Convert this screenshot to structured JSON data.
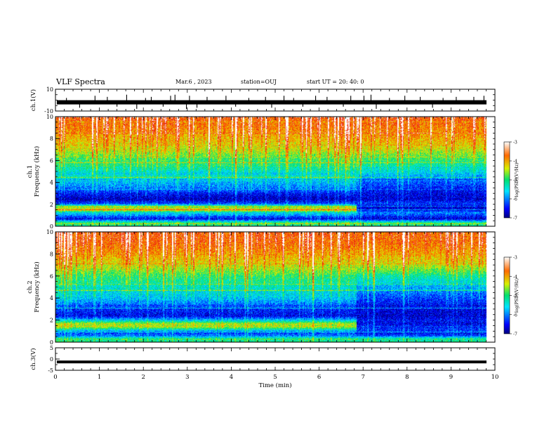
{
  "header": {
    "title": "VLF Spectra",
    "date": "Mar.6  , 2023",
    "station": "station=OUJ",
    "start": "start  UT  =   20: 40: 0"
  },
  "colors": {
    "panel_bg": "#0a1f9a",
    "waveform": "#000000",
    "accent_green": "#9be04a"
  },
  "chart_data": [
    {
      "type": "line",
      "name": "ch.1 waveform",
      "ylabel": "ch.1(V)",
      "yticks": [
        "10",
        "-10"
      ],
      "ylim": [
        -10,
        10
      ],
      "xlim": [
        0,
        10
      ],
      "baseline": -2,
      "spikes": [
        [
          0.25,
          4
        ],
        [
          0.55,
          -5
        ],
        [
          0.9,
          6
        ],
        [
          1.18,
          5
        ],
        [
          1.4,
          -4
        ],
        [
          1.62,
          7
        ],
        [
          1.85,
          -6
        ],
        [
          2.05,
          4
        ],
        [
          2.18,
          5
        ],
        [
          2.45,
          -4
        ],
        [
          2.62,
          6
        ],
        [
          2.72,
          7
        ],
        [
          2.98,
          -6
        ],
        [
          3.05,
          6
        ],
        [
          3.22,
          -5
        ],
        [
          3.45,
          5
        ],
        [
          3.88,
          6
        ],
        [
          4.1,
          -4
        ],
        [
          4.4,
          4
        ],
        [
          4.78,
          5
        ],
        [
          4.92,
          -5
        ],
        [
          5.2,
          6
        ],
        [
          5.42,
          4
        ],
        [
          5.63,
          -4
        ],
        [
          5.92,
          6
        ],
        [
          6.18,
          5
        ],
        [
          6.55,
          -4
        ],
        [
          6.72,
          6
        ],
        [
          7.02,
          6
        ],
        [
          7.18,
          7
        ],
        [
          7.3,
          -6
        ],
        [
          7.6,
          4
        ],
        [
          7.95,
          6
        ],
        [
          8.3,
          5
        ],
        [
          8.58,
          -5
        ],
        [
          8.82,
          4
        ],
        [
          9.12,
          5
        ],
        [
          9.52,
          5
        ],
        [
          9.75,
          6
        ]
      ]
    },
    {
      "type": "heatmap",
      "name": "ch.1 spectrogram",
      "ylabel": "ch.1\nFrequency  (kHz)",
      "yticks": [
        "0",
        "2",
        "4",
        "6",
        "8",
        "10"
      ],
      "ylim": [
        0,
        10
      ],
      "xlim": [
        0,
        10
      ],
      "colorbar": {
        "label": "log(PSD)(V²/Hz)",
        "ticks": [
          "-3",
          "-4",
          "-5",
          "-6",
          "-7"
        ],
        "range": [
          -7,
          -3
        ]
      },
      "regime_change_min": 6.85,
      "profile_before": [
        [
          0.0,
          -5.3
        ],
        [
          0.3,
          -4.8
        ],
        [
          0.7,
          -6.6
        ],
        [
          1.0,
          -6.0
        ],
        [
          1.3,
          -5.5
        ],
        [
          1.5,
          -4.2
        ],
        [
          1.8,
          -4.7
        ],
        [
          2.1,
          -6.3
        ],
        [
          2.5,
          -6.8
        ],
        [
          3.0,
          -6.5
        ],
        [
          3.4,
          -6.1
        ],
        [
          4.0,
          -5.8
        ],
        [
          4.6,
          -5.3
        ],
        [
          4.8,
          -5.6
        ],
        [
          5.4,
          -5.1
        ],
        [
          6.2,
          -4.9
        ],
        [
          7.0,
          -4.4
        ],
        [
          8.0,
          -4.1
        ],
        [
          9.0,
          -3.8
        ],
        [
          10.0,
          -3.6
        ]
      ],
      "profile_after": [
        [
          0.0,
          -5.3
        ],
        [
          0.3,
          -4.9
        ],
        [
          0.7,
          -6.7
        ],
        [
          1.0,
          -6.3
        ],
        [
          1.3,
          -6.0
        ],
        [
          1.5,
          -6.6
        ],
        [
          1.8,
          -6.7
        ],
        [
          2.1,
          -6.3
        ],
        [
          2.5,
          -6.7
        ],
        [
          3.0,
          -6.6
        ],
        [
          3.5,
          -6.4
        ],
        [
          4.0,
          -6.2
        ],
        [
          4.6,
          -5.8
        ],
        [
          5.4,
          -5.3
        ],
        [
          6.2,
          -4.9
        ],
        [
          7.0,
          -4.4
        ],
        [
          8.0,
          -4.0
        ],
        [
          9.0,
          -3.8
        ],
        [
          10.0,
          -3.6
        ]
      ]
    },
    {
      "type": "heatmap",
      "name": "ch.2 spectrogram",
      "ylabel": "ch.2\nFrequency  (kHz)",
      "yticks": [
        "0",
        "2",
        "4",
        "6",
        "8",
        "10"
      ],
      "ylim": [
        0,
        10
      ],
      "xlim": [
        0,
        10
      ],
      "colorbar": {
        "label": "log(PSD)(V²/Hz)",
        "ticks": [
          "-3",
          "-4",
          "-5",
          "-6",
          "-7"
        ],
        "range": [
          -7,
          -3
        ]
      },
      "regime_change_min": 6.85,
      "profile_before": [
        [
          0.0,
          -5.2
        ],
        [
          0.3,
          -4.9
        ],
        [
          0.7,
          -6.4
        ],
        [
          1.0,
          -6.0
        ],
        [
          1.4,
          -4.6
        ],
        [
          1.7,
          -4.5
        ],
        [
          2.0,
          -5.6
        ],
        [
          2.4,
          -6.6
        ],
        [
          3.0,
          -6.4
        ],
        [
          3.6,
          -6.0
        ],
        [
          4.2,
          -5.6
        ],
        [
          4.8,
          -5.5
        ],
        [
          5.2,
          -5.3
        ],
        [
          6.0,
          -5.0
        ],
        [
          6.6,
          -4.6
        ],
        [
          7.2,
          -4.3
        ],
        [
          8.0,
          -4.0
        ],
        [
          9.0,
          -3.7
        ],
        [
          10.0,
          -3.6
        ]
      ],
      "profile_after": [
        [
          0.0,
          -5.2
        ],
        [
          0.3,
          -5.0
        ],
        [
          0.7,
          -6.6
        ],
        [
          1.0,
          -6.3
        ],
        [
          1.4,
          -6.4
        ],
        [
          1.7,
          -6.6
        ],
        [
          2.0,
          -6.5
        ],
        [
          2.4,
          -6.7
        ],
        [
          3.0,
          -6.6
        ],
        [
          3.6,
          -6.4
        ],
        [
          4.2,
          -6.2
        ],
        [
          4.8,
          -5.9
        ],
        [
          5.2,
          -5.7
        ],
        [
          6.0,
          -5.2
        ],
        [
          6.6,
          -4.7
        ],
        [
          7.2,
          -4.3
        ],
        [
          8.0,
          -4.0
        ],
        [
          9.0,
          -3.7
        ],
        [
          10.0,
          -3.6
        ]
      ]
    },
    {
      "type": "line",
      "name": "ch.3 signal",
      "ylabel": "ch.3(V)",
      "yticks": [
        "5",
        "0",
        "-5"
      ],
      "ylim": [
        -5,
        5
      ],
      "xlim": [
        0,
        10
      ],
      "value": -1.3,
      "xlabel": "Time  (min)",
      "xticks": [
        "0",
        "1",
        "2",
        "3",
        "4",
        "5",
        "6",
        "7",
        "8",
        "9",
        "10"
      ]
    }
  ]
}
